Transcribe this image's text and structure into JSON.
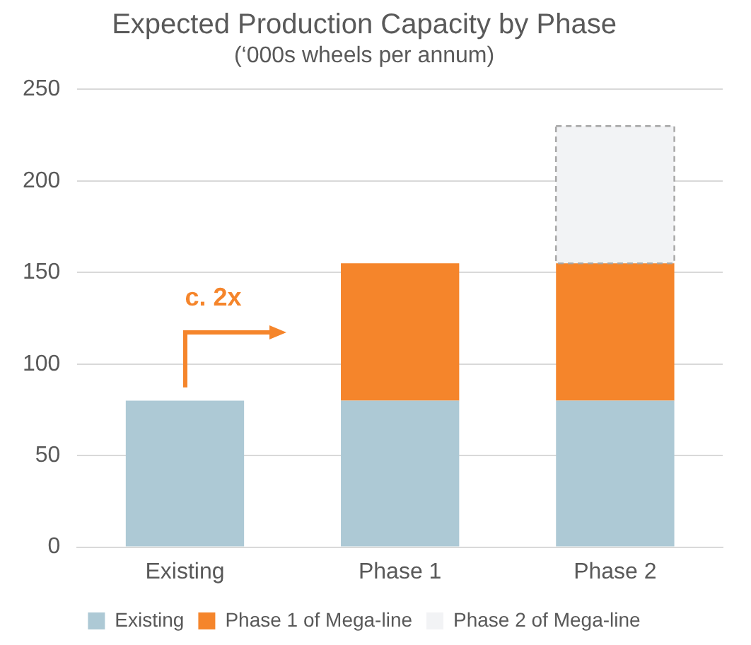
{
  "chart_data": {
    "type": "bar",
    "title": "Expected Production Capacity by Phase",
    "subtitle": "(‘000s wheels per annum)",
    "categories": [
      "Existing",
      "Phase 1",
      "Phase 2"
    ],
    "stacked": true,
    "series": [
      {
        "name": "Existing",
        "color": "#adc9d5",
        "values": [
          80,
          80,
          80
        ]
      },
      {
        "name": "Phase 1 of Mega-line",
        "color": "#f5852b",
        "values": [
          null,
          75,
          75
        ]
      },
      {
        "name": "Phase 2 of Mega-line",
        "color": "#f2f3f5",
        "values": [
          null,
          null,
          75
        ],
        "line_style": "dashed"
      }
    ],
    "ylim": [
      0,
      250
    ],
    "yticks": [
      0,
      50,
      100,
      150,
      200,
      250
    ],
    "grid": "y",
    "legend": "bottom",
    "annotations": [
      "c. 2x"
    ]
  }
}
